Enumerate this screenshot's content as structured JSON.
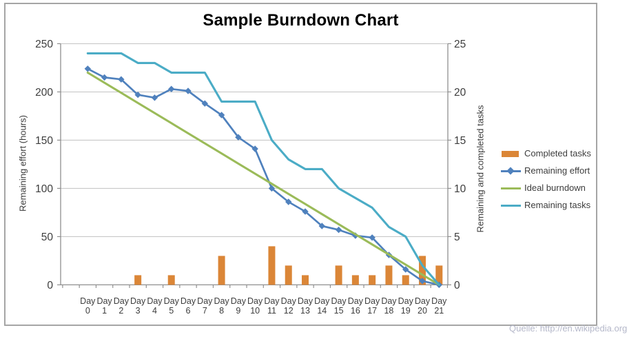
{
  "source_note": "Quelle: http://en.wikipedia.org",
  "legend": {
    "items": [
      {
        "label": "Completed tasks",
        "type": "bar",
        "color": "#db8637"
      },
      {
        "label": "Remaining effort",
        "type": "line-diamond",
        "color": "#4f81bd"
      },
      {
        "label": "Ideal burndown",
        "type": "line",
        "color": "#9bbb59"
      },
      {
        "label": "Remaining tasks",
        "type": "line",
        "color": "#4bacc6"
      }
    ]
  },
  "chart_data": {
    "type": "bar+line combo",
    "title": "Sample Burndown Chart",
    "categories": [
      "Day 0",
      "Day 1",
      "Day 2",
      "Day 3",
      "Day 4",
      "Day 5",
      "Day 6",
      "Day 7",
      "Day 8",
      "Day 9",
      "Day 10",
      "Day 11",
      "Day 12",
      "Day 13",
      "Day 14",
      "Day 15",
      "Day 16",
      "Day 17",
      "Day 18",
      "Day 19",
      "Day 20",
      "Day 21"
    ],
    "left_axis": {
      "title": "Remaining effort (hours)",
      "min": 0,
      "max": 250,
      "step": 50,
      "ticks": [
        0,
        50,
        100,
        150,
        200,
        250
      ]
    },
    "right_axis": {
      "title": "Remaining and completed tasks",
      "min": 0,
      "max": 25,
      "step": 5,
      "ticks": [
        0,
        5,
        10,
        15,
        20,
        25
      ]
    },
    "grid": "horizontal",
    "legend_position": "right",
    "series": [
      {
        "name": "Completed tasks",
        "type": "bar",
        "axis": "right",
        "color": "#db8637",
        "values": [
          0,
          0,
          0,
          1,
          0,
          1,
          0,
          0,
          3,
          0,
          0,
          4,
          2,
          1,
          0,
          2,
          1,
          1,
          2,
          1,
          3,
          2
        ]
      },
      {
        "name": "Remaining effort",
        "type": "line",
        "marker": "diamond",
        "axis": "left",
        "color": "#4f81bd",
        "values": [
          224,
          215,
          213,
          197,
          194,
          203,
          201,
          188,
          176,
          153,
          141,
          100,
          86,
          76,
          61,
          57,
          51,
          49,
          31,
          16,
          4,
          0
        ]
      },
      {
        "name": "Ideal burndown",
        "type": "line",
        "axis": "left",
        "color": "#9bbb59",
        "values": [
          220,
          209.52,
          199.05,
          188.57,
          178.1,
          167.62,
          157.14,
          146.67,
          136.19,
          125.71,
          115.24,
          104.76,
          94.29,
          83.81,
          73.33,
          62.86,
          52.38,
          41.9,
          31.43,
          20.95,
          10.48,
          0
        ]
      },
      {
        "name": "Remaining tasks",
        "type": "line",
        "axis": "right",
        "color": "#4bacc6",
        "values": [
          24,
          24,
          24,
          23,
          23,
          22,
          22,
          22,
          19,
          19,
          19,
          15,
          13,
          12,
          12,
          10,
          9,
          8,
          6,
          5,
          2,
          0
        ]
      }
    ]
  },
  "style": {
    "gridline_color": "#c8c8c8",
    "axis_color": "#8f8f8f",
    "tick_label_color": "#3d3d3d",
    "frame_color": "#a5a5a5"
  }
}
